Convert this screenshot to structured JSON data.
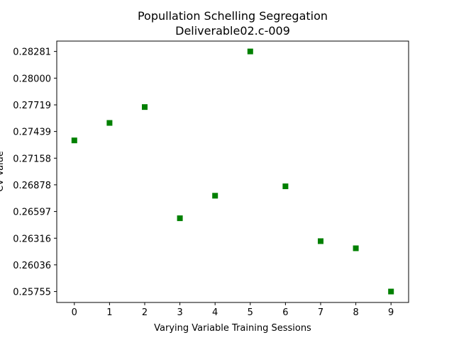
{
  "chart_data": {
    "type": "scatter",
    "title": "Popullation Schelling Segregation",
    "subtitle": "Deliverable02.c-009",
    "xlabel": "Varying Variable Training Sessions",
    "ylabel": "CV Value",
    "x_ticks": [
      "0",
      "1",
      "2",
      "3",
      "4",
      "5",
      "6",
      "7",
      "8",
      "9"
    ],
    "y_ticks": [
      "0.25755",
      "0.26036",
      "0.26316",
      "0.26597",
      "0.26878",
      "0.27158",
      "0.27439",
      "0.27719",
      "0.28000",
      "0.28281"
    ],
    "xlim": [
      -0.5,
      9.5
    ],
    "ylim": [
      0.2564,
      0.2839
    ],
    "grid": false,
    "marker": "square",
    "color": "#008000",
    "series": [
      {
        "x": [
          0,
          1,
          2,
          3,
          4,
          5,
          6,
          7,
          8,
          9
        ],
        "y": [
          0.27345,
          0.27529,
          0.27696,
          0.26526,
          0.26763,
          0.28281,
          0.26862,
          0.26285,
          0.2621,
          0.25755
        ]
      }
    ]
  }
}
